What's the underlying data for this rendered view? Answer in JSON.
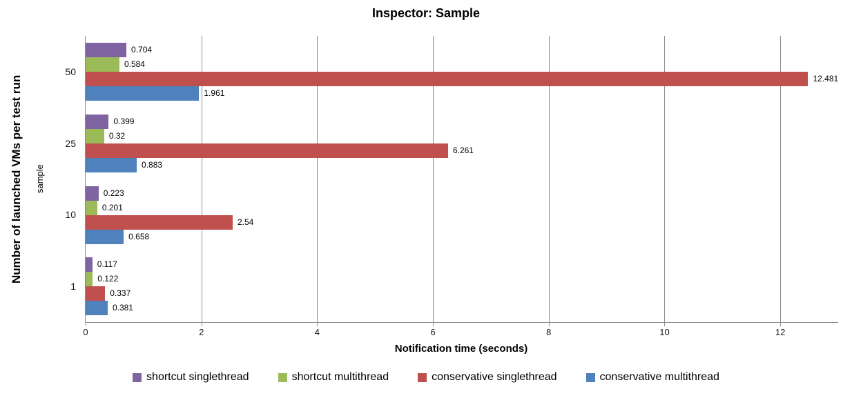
{
  "chart_data": {
    "type": "bar",
    "orientation": "horizontal",
    "title": "Inspector: Sample",
    "xlabel": "Notification time (seconds)",
    "ylabel": "Number of launched VMs per test run",
    "ylabel_secondary": "sample",
    "categories": [
      "50",
      "25",
      "10",
      "1"
    ],
    "series": [
      {
        "name": "shortcut singlethread",
        "color": "#8064A2",
        "values": [
          0.704,
          0.399,
          0.223,
          0.117
        ],
        "labels": [
          "0.704",
          "0.399",
          "0.223",
          "0.117"
        ]
      },
      {
        "name": "shortcut multithread",
        "color": "#9BBB59",
        "values": [
          0.584,
          0.32,
          0.201,
          0.122
        ],
        "labels": [
          "0.584",
          "0.32",
          "0.201",
          "0.122"
        ]
      },
      {
        "name": "conservative singlethread",
        "color": "#C0504D",
        "values": [
          12.481,
          6.261,
          2.54,
          0.337
        ],
        "labels": [
          "12.481",
          "6.261",
          "2.54",
          "0.337"
        ]
      },
      {
        "name": "conservative multithread",
        "color": "#4F81BD",
        "values": [
          1.961,
          0.883,
          0.658,
          0.381
        ],
        "labels": [
          "1.961",
          "0.883",
          "0.658",
          "0.381"
        ]
      }
    ],
    "xlim": [
      0,
      13
    ],
    "xticks": [
      0,
      2,
      4,
      6,
      8,
      10,
      12
    ],
    "grid": true,
    "legend_position": "bottom",
    "colors": {
      "gridline": "#8C8C8C",
      "axis": "#8C8C8C",
      "text": "#000000"
    }
  }
}
